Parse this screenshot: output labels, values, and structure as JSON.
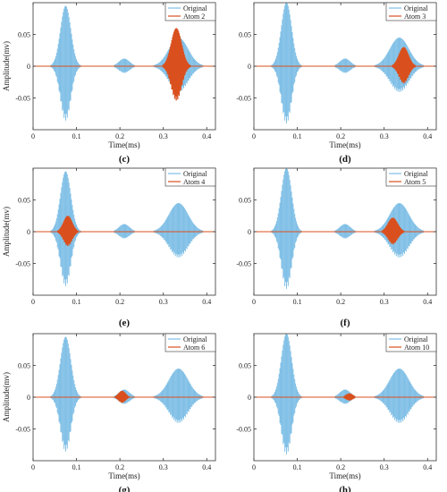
{
  "figure": {
    "colors": {
      "original": "#7fbfe6",
      "atom": "#d9501e",
      "axis": "#333333",
      "text": "#222222"
    }
  },
  "chart_data": [
    {
      "type": "line",
      "panel": "(c)",
      "xlabel": "Time(ms)",
      "ylabel": "Amplitude(mv)",
      "xlim": [
        0,
        0.42
      ],
      "ylim": [
        -0.1,
        0.1
      ],
      "x_ticks": [
        0,
        0.1,
        0.2,
        0.3,
        0.4
      ],
      "y_ticks": [
        -0.05,
        0,
        0.05
      ],
      "legend_position": "top-right",
      "series": [
        {
          "name": "Original",
          "packets": [
            {
              "center": 0.075,
              "width": 0.012,
              "amplitude": 0.095
            },
            {
              "center": 0.21,
              "width": 0.012,
              "amplitude": 0.012
            },
            {
              "center": 0.335,
              "width": 0.022,
              "amplitude": 0.045
            }
          ]
        },
        {
          "name": "Atom 2",
          "packets": [
            {
              "center": 0.33,
              "width": 0.012,
              "amplitude": 0.06
            }
          ]
        }
      ]
    },
    {
      "type": "line",
      "panel": "(d)",
      "xlabel": "Time(ms)",
      "ylabel": "",
      "xlim": [
        0,
        0.42
      ],
      "ylim": [
        -0.1,
        0.1
      ],
      "x_ticks": [
        0,
        0.1,
        0.2,
        0.3,
        0.4
      ],
      "y_ticks": [
        -0.05,
        0,
        0.05
      ],
      "legend_position": "top-right",
      "series": [
        {
          "name": "Original",
          "packets": [
            {
              "center": 0.075,
              "width": 0.012,
              "amplitude": 0.1
            },
            {
              "center": 0.21,
              "width": 0.012,
              "amplitude": 0.012
            },
            {
              "center": 0.335,
              "width": 0.022,
              "amplitude": 0.045
            }
          ]
        },
        {
          "name": "Atom 3",
          "packets": [
            {
              "center": 0.345,
              "width": 0.011,
              "amplitude": 0.03
            }
          ]
        }
      ]
    },
    {
      "type": "line",
      "panel": "(e)",
      "xlabel": "",
      "ylabel": "Amplitude(mv)",
      "xlim": [
        0,
        0.42
      ],
      "ylim": [
        -0.1,
        0.1
      ],
      "x_ticks": [
        0,
        0.1,
        0.2,
        0.3,
        0.4
      ],
      "y_ticks": [
        -0.05,
        0,
        0.05
      ],
      "legend_position": "top-right",
      "series": [
        {
          "name": "Original",
          "packets": [
            {
              "center": 0.075,
              "width": 0.012,
              "amplitude": 0.095
            },
            {
              "center": 0.21,
              "width": 0.012,
              "amplitude": 0.012
            },
            {
              "center": 0.335,
              "width": 0.022,
              "amplitude": 0.045
            }
          ]
        },
        {
          "name": "Atom 4",
          "packets": [
            {
              "center": 0.08,
              "width": 0.01,
              "amplitude": 0.025
            }
          ]
        }
      ]
    },
    {
      "type": "line",
      "panel": "(f)",
      "xlabel": "",
      "ylabel": "",
      "xlim": [
        0,
        0.42
      ],
      "ylim": [
        -0.1,
        0.1
      ],
      "x_ticks": [
        0,
        0.1,
        0.2,
        0.3,
        0.4
      ],
      "y_ticks": [
        -0.05,
        0,
        0.05
      ],
      "legend_position": "top-right",
      "series": [
        {
          "name": "Original",
          "packets": [
            {
              "center": 0.075,
              "width": 0.012,
              "amplitude": 0.1
            },
            {
              "center": 0.21,
              "width": 0.012,
              "amplitude": 0.012
            },
            {
              "center": 0.335,
              "width": 0.022,
              "amplitude": 0.045
            }
          ]
        },
        {
          "name": "Atom 5",
          "packets": [
            {
              "center": 0.32,
              "width": 0.011,
              "amplitude": 0.022
            }
          ]
        }
      ]
    },
    {
      "type": "line",
      "panel": "(g)",
      "xlabel": "Time(ms)",
      "ylabel": "Amplitude(mv)",
      "xlim": [
        0,
        0.42
      ],
      "ylim": [
        -0.1,
        0.1
      ],
      "x_ticks": [
        0,
        0.1,
        0.2,
        0.3,
        0.4
      ],
      "y_ticks": [
        -0.05,
        0,
        0.05
      ],
      "legend_position": "top-right",
      "series": [
        {
          "name": "Original",
          "packets": [
            {
              "center": 0.075,
              "width": 0.012,
              "amplitude": 0.095
            },
            {
              "center": 0.21,
              "width": 0.012,
              "amplitude": 0.012
            },
            {
              "center": 0.335,
              "width": 0.022,
              "amplitude": 0.045
            }
          ]
        },
        {
          "name": "Atom 6",
          "packets": [
            {
              "center": 0.205,
              "width": 0.008,
              "amplitude": 0.01
            }
          ]
        }
      ]
    },
    {
      "type": "line",
      "panel": "(h)",
      "xlabel": "Time(ms)",
      "ylabel": "",
      "xlim": [
        0,
        0.42
      ],
      "ylim": [
        -0.1,
        0.1
      ],
      "x_ticks": [
        0,
        0.1,
        0.2,
        0.3,
        0.4
      ],
      "y_ticks": [
        -0.05,
        0,
        0.05
      ],
      "legend_position": "top-right",
      "series": [
        {
          "name": "Original",
          "packets": [
            {
              "center": 0.075,
              "width": 0.012,
              "amplitude": 0.1
            },
            {
              "center": 0.21,
              "width": 0.012,
              "amplitude": 0.012
            },
            {
              "center": 0.335,
              "width": 0.022,
              "amplitude": 0.045
            }
          ]
        },
        {
          "name": "Atom 10",
          "packets": [
            {
              "center": 0.22,
              "width": 0.008,
              "amplitude": 0.006
            }
          ]
        }
      ]
    }
  ]
}
